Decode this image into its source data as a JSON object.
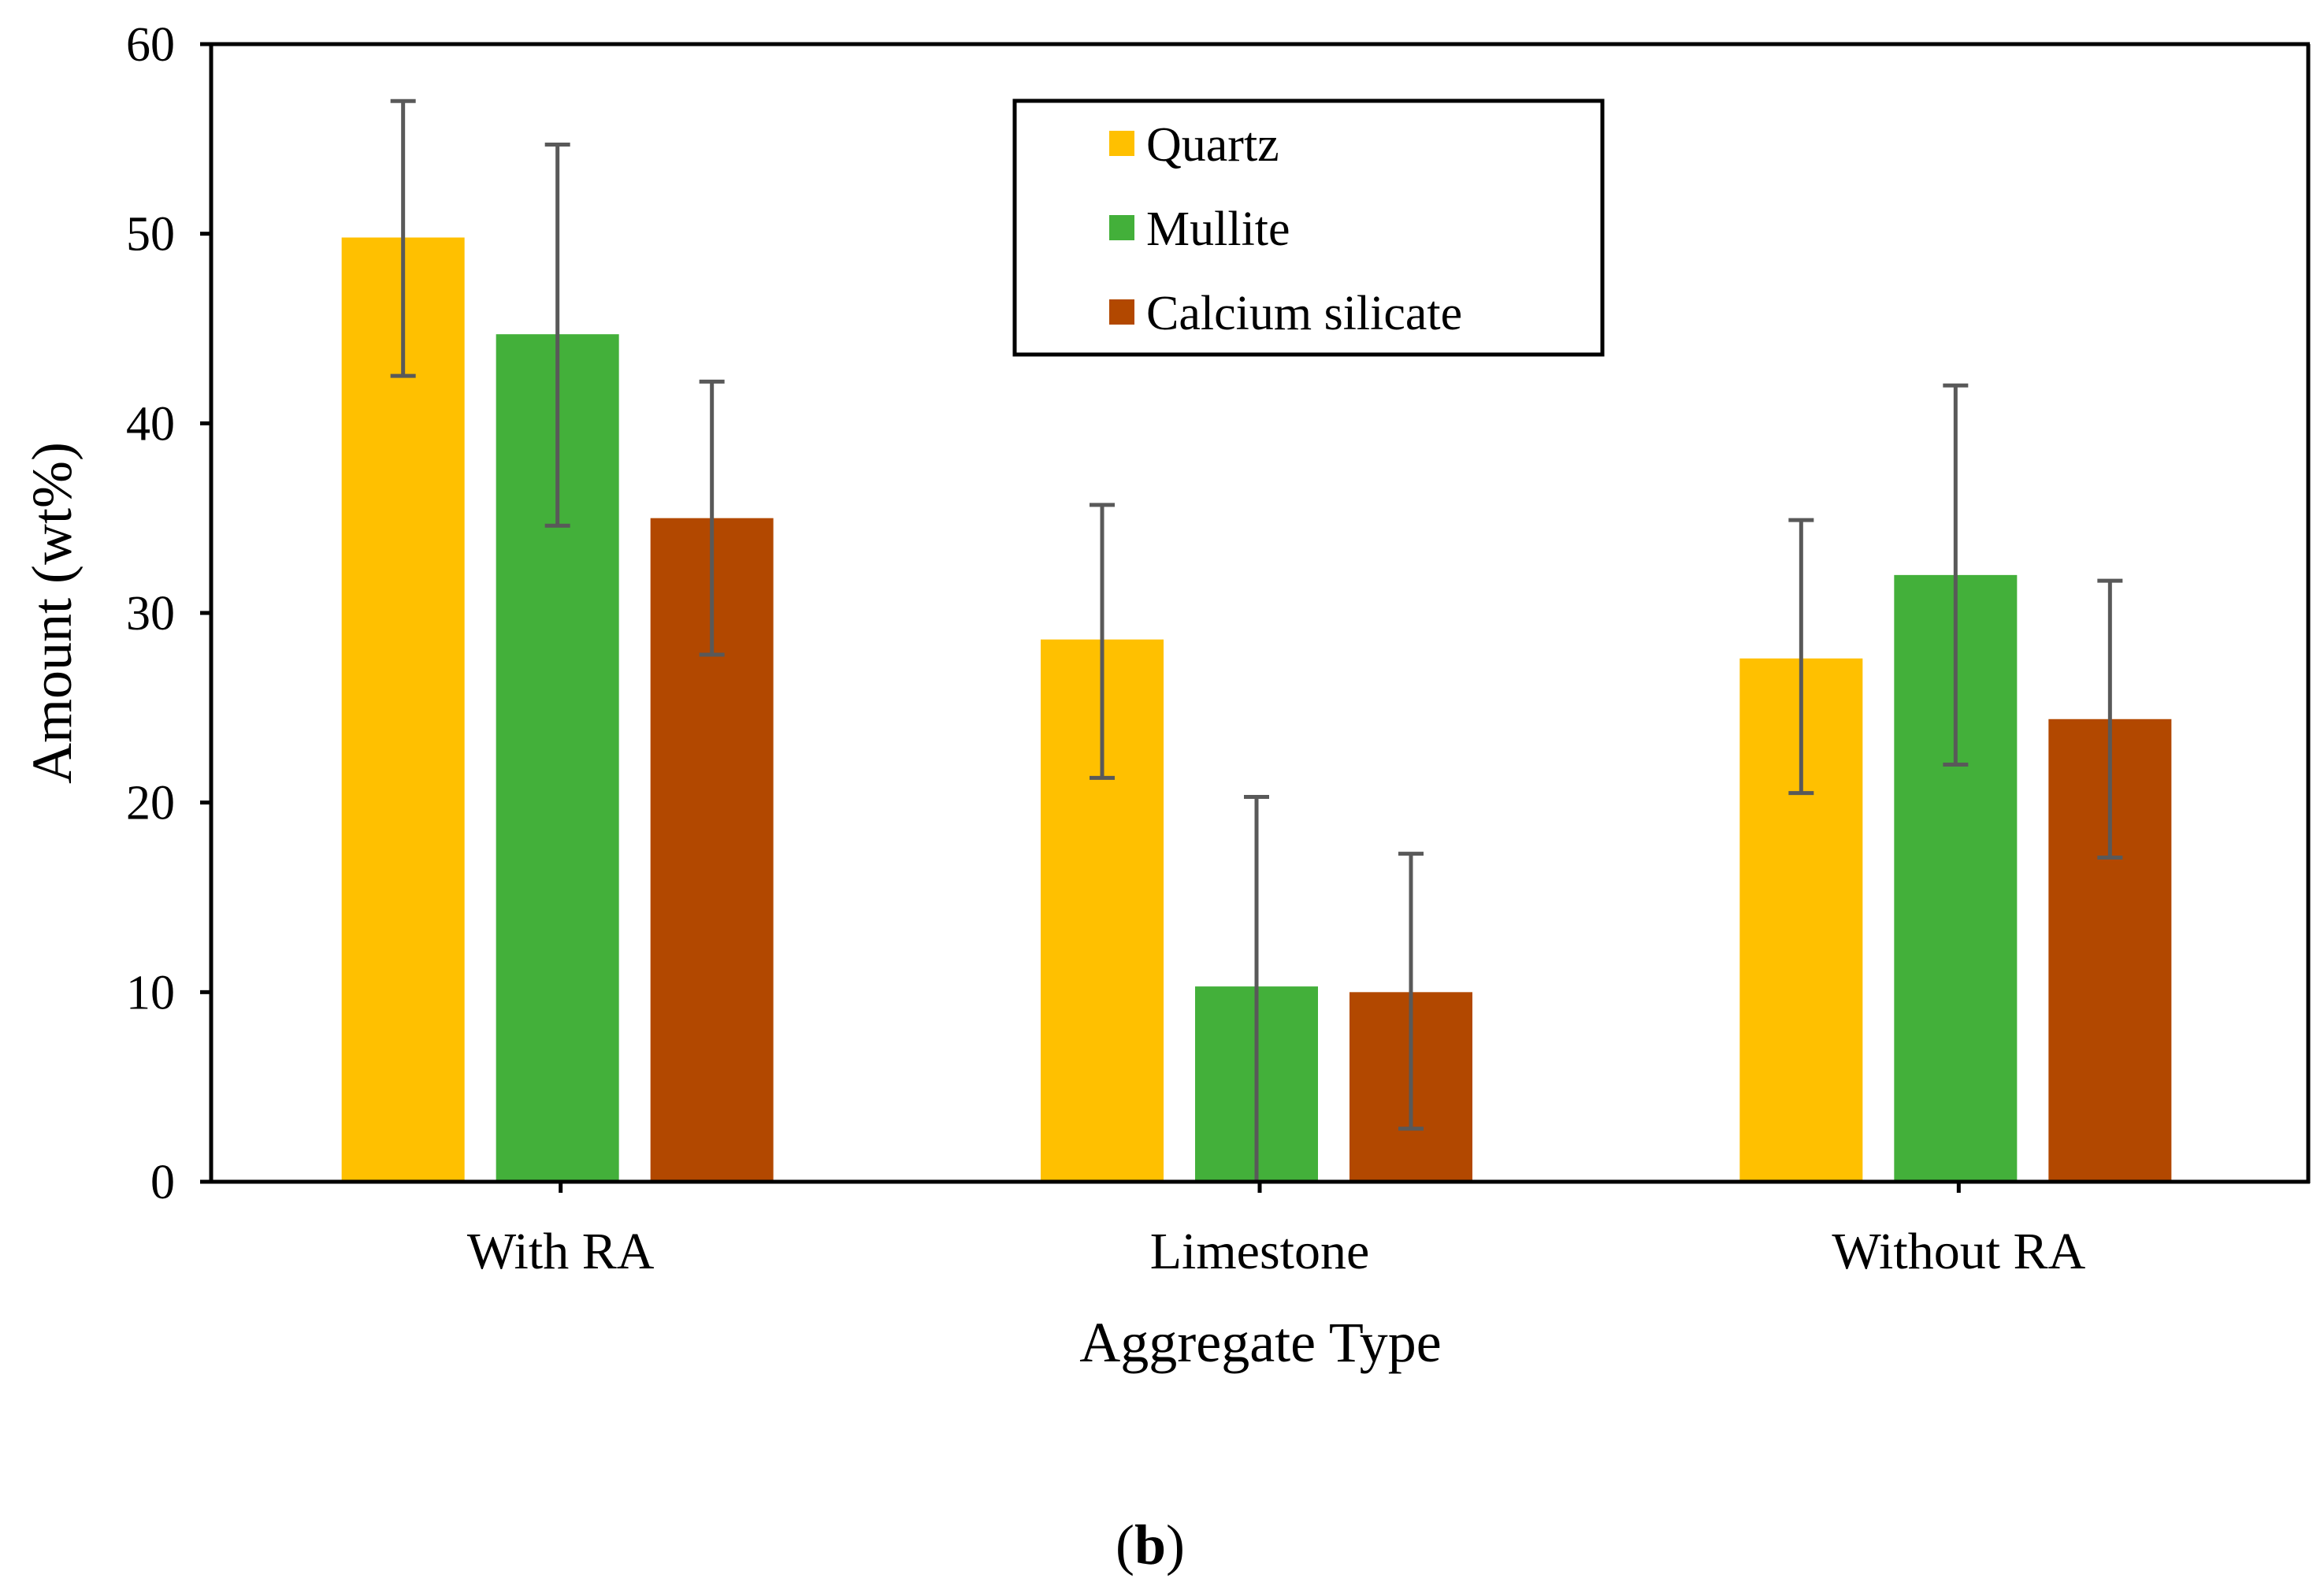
{
  "chart_data": {
    "type": "bar",
    "title": "",
    "xlabel": "Aggregate Type",
    "ylabel": "Amount (wt%)",
    "ylim": [
      0,
      60
    ],
    "yticks": [
      0,
      10,
      20,
      30,
      40,
      50,
      60
    ],
    "grid": false,
    "legend_position": "top-center",
    "categories": [
      "With RA",
      "Limestone",
      "Without RA"
    ],
    "series": [
      {
        "name": "Quartz",
        "color": "#FFC000",
        "values": [
          49.8,
          28.6,
          27.6
        ],
        "error_low": [
          42.5,
          21.3,
          20.5
        ],
        "error_high": [
          57.0,
          35.7,
          34.9
        ]
      },
      {
        "name": "Mullite",
        "color": "#43B03A",
        "values": [
          44.7,
          10.3,
          32.0
        ],
        "error_low": [
          34.6,
          0.0,
          22.0
        ],
        "error_high": [
          54.7,
          20.3,
          42.0
        ]
      },
      {
        "name": "Calcium silicate",
        "color": "#B24800",
        "values": [
          35.0,
          10.0,
          24.4
        ],
        "error_low": [
          27.8,
          2.8,
          17.1
        ],
        "error_high": [
          42.2,
          17.3,
          31.7
        ]
      }
    ]
  },
  "caption": {
    "open": "(",
    "letter": "b",
    "close": ")"
  }
}
